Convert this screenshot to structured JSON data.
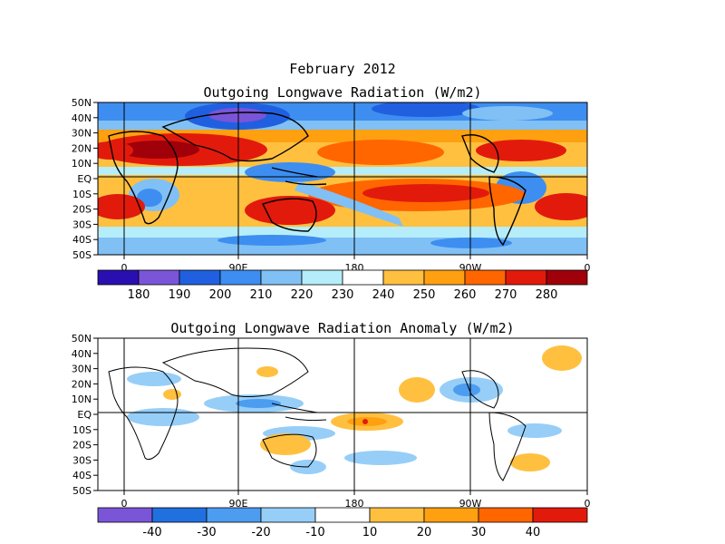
{
  "figure": {
    "title": "February 2012",
    "panels": [
      {
        "title": "Outgoing Longwave Radiation (W/m2)",
        "lat_labels": [
          "50N",
          "40N",
          "30N",
          "20N",
          "10N",
          "EQ",
          "10S",
          "20S",
          "30S",
          "40S",
          "50S"
        ],
        "lon_labels": [
          "0",
          "90E",
          "180",
          "90W",
          "0"
        ],
        "colorbar": {
          "labels": [
            "180",
            "190",
            "200",
            "210",
            "220",
            "230",
            "240",
            "250",
            "260",
            "270",
            "280"
          ],
          "colors": [
            "#2a0fb0",
            "#7a55d8",
            "#2060e0",
            "#3d8ef0",
            "#80c0f5",
            "#b5eefa",
            "#ffffff",
            "#ffc040",
            "#ffa010",
            "#ff6600",
            "#e21a0c",
            "#a0000a"
          ]
        }
      },
      {
        "title": "Outgoing Longwave Radiation Anomaly (W/m2)",
        "lat_labels": [
          "50N",
          "40N",
          "30N",
          "20N",
          "10N",
          "EQ",
          "10S",
          "20S",
          "30S",
          "40S",
          "50S"
        ],
        "lon_labels": [
          "0",
          "90E",
          "180",
          "90W",
          "0"
        ],
        "colorbar": {
          "labels": [
            "-40",
            "-30",
            "-20",
            "-10",
            "10",
            "20",
            "30",
            "40"
          ],
          "colors": [
            "#7a55d8",
            "#2070e0",
            "#4c9cf0",
            "#96cef8",
            "#ffffff",
            "#ffc040",
            "#ffa010",
            "#ff6600",
            "#e21a0c"
          ]
        }
      }
    ]
  }
}
